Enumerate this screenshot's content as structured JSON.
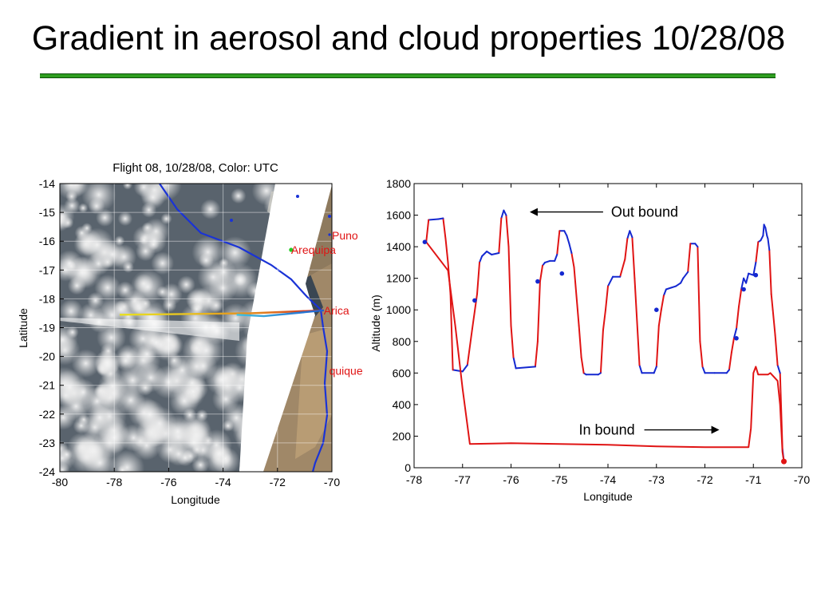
{
  "page": {
    "title": "Gradient in aerosol and cloud properties 10/28/08"
  },
  "colors": {
    "title_rule": "#2f9e20",
    "segment_outbound": "#1428d0",
    "segment_inbound": "#e01414",
    "label_red": "#e01414",
    "arequipa_marker": "#22cc22",
    "track_yellow": "#e8e020",
    "track_cyan": "#40c0e0"
  },
  "chart_data": [
    {
      "type": "map",
      "title": "Flight 08, 10/28/08, Color: UTC",
      "xlabel": "Longitude",
      "ylabel": "Latitude",
      "xlim": [
        -80,
        -70
      ],
      "ylim": [
        -24,
        -14
      ],
      "xticks": [
        "-80",
        "-78",
        "-76",
        "-74",
        "-72",
        "-70"
      ],
      "yticks": [
        "-14",
        "-15",
        "-16",
        "-17",
        "-18",
        "-19",
        "-20",
        "-21",
        "-22",
        "-23",
        "-24"
      ],
      "grid": true,
      "background": "satellite cloud imagery",
      "places": [
        {
          "name": "Puno",
          "lon": -70.0,
          "lat": -15.8,
          "color": "label_red"
        },
        {
          "name": "Arequipa",
          "lon": -71.5,
          "lat": -16.3,
          "color": "label_red",
          "marker": "arequipa_marker"
        },
        {
          "name": "Arica",
          "lon": -70.3,
          "lat": -18.4,
          "color": "label_red"
        },
        {
          "name": "Iquique",
          "lon": -70.1,
          "lat": -20.5,
          "color": "label_red",
          "shown_text": "quique"
        }
      ],
      "tracks": [
        {
          "points": [
            [
              -70.3,
              -18.4
            ],
            [
              -73.0,
              -18.5
            ],
            [
              -77.8,
              -18.55
            ]
          ],
          "colors": [
            "#d02020",
            "#e08020",
            "#e8e020"
          ]
        },
        {
          "points": [
            [
              -70.3,
              -18.4
            ],
            [
              -72.5,
              -18.6
            ],
            [
              -73.5,
              -18.55
            ]
          ],
          "colors": [
            "#2060d0",
            "#40c0e0"
          ]
        }
      ]
    },
    {
      "type": "line",
      "xlabel": "Longitude",
      "ylabel": "Altitude (m)",
      "xlim": [
        -78,
        -70
      ],
      "ylim": [
        0,
        1800
      ],
      "xticks": [
        "-78",
        "-77",
        "-76",
        "-75",
        "-74",
        "-73",
        "-72",
        "-71",
        "-70"
      ],
      "yticks": [
        "0",
        "200",
        "400",
        "600",
        "800",
        "1000",
        "1200",
        "1400",
        "1600",
        "1800"
      ],
      "grid": false,
      "annotations": [
        {
          "text": "Out bound",
          "arrow": "left",
          "x": -74.1,
          "y": 1620
        },
        {
          "text": "In bound",
          "arrow": "right",
          "x": -74.6,
          "y": 240
        }
      ],
      "series": [
        {
          "color": "mixed",
          "points": [
            [
              -70.37,
              40
            ],
            [
              -70.4,
              120
            ],
            [
              -70.45,
              600
            ],
            [
              -70.5,
              650
            ],
            [
              -70.55,
              840
            ],
            [
              -70.6,
              1000
            ],
            [
              -70.63,
              1100
            ],
            [
              -70.67,
              1380
            ],
            [
              -70.7,
              1450
            ],
            [
              -70.72,
              1470
            ],
            [
              -70.75,
              1520
            ],
            [
              -70.78,
              1540
            ],
            [
              -70.8,
              1470
            ],
            [
              -70.85,
              1440
            ],
            [
              -70.9,
              1430
            ],
            [
              -70.95,
              1300
            ],
            [
              -71.0,
              1220
            ],
            [
              -71.1,
              1230
            ],
            [
              -71.15,
              1170
            ],
            [
              -71.2,
              1200
            ],
            [
              -71.25,
              1130
            ],
            [
              -71.3,
              1020
            ],
            [
              -71.35,
              880
            ],
            [
              -71.4,
              820
            ],
            [
              -71.45,
              730
            ],
            [
              -71.5,
              620
            ],
            [
              -71.55,
              600
            ],
            [
              -71.8,
              600
            ],
            [
              -72.0,
              600
            ],
            [
              -72.05,
              640
            ],
            [
              -72.1,
              800
            ],
            [
              -72.15,
              1400
            ],
            [
              -72.2,
              1420
            ],
            [
              -72.3,
              1420
            ],
            [
              -72.35,
              1240
            ],
            [
              -72.45,
              1200
            ],
            [
              -72.5,
              1170
            ],
            [
              -72.6,
              1150
            ],
            [
              -72.7,
              1140
            ],
            [
              -72.8,
              1130
            ],
            [
              -72.85,
              1090
            ],
            [
              -72.9,
              1000
            ],
            [
              -72.95,
              900
            ],
            [
              -73.0,
              640
            ],
            [
              -73.05,
              600
            ],
            [
              -73.3,
              600
            ],
            [
              -73.35,
              650
            ],
            [
              -73.45,
              1200
            ],
            [
              -73.5,
              1460
            ],
            [
              -73.55,
              1500
            ],
            [
              -73.6,
              1450
            ],
            [
              -73.65,
              1320
            ],
            [
              -73.75,
              1210
            ],
            [
              -73.9,
              1210
            ],
            [
              -74.0,
              1150
            ],
            [
              -74.05,
              1000
            ],
            [
              -74.1,
              870
            ],
            [
              -74.15,
              600
            ],
            [
              -74.2,
              590
            ],
            [
              -74.45,
              590
            ],
            [
              -74.5,
              600
            ],
            [
              -74.55,
              700
            ],
            [
              -74.6,
              900
            ],
            [
              -74.7,
              1270
            ],
            [
              -74.75,
              1360
            ],
            [
              -74.8,
              1420
            ],
            [
              -74.85,
              1470
            ],
            [
              -74.9,
              1500
            ],
            [
              -75.0,
              1500
            ],
            [
              -75.05,
              1350
            ],
            [
              -75.1,
              1310
            ],
            [
              -75.2,
              1310
            ],
            [
              -75.3,
              1300
            ],
            [
              -75.35,
              1280
            ],
            [
              -75.4,
              1180
            ],
            [
              -75.45,
              800
            ],
            [
              -75.5,
              640
            ],
            [
              -75.9,
              630
            ],
            [
              -75.95,
              700
            ],
            [
              -76.0,
              900
            ],
            [
              -76.05,
              1400
            ],
            [
              -76.1,
              1600
            ],
            [
              -76.15,
              1630
            ],
            [
              -76.2,
              1580
            ],
            [
              -76.25,
              1360
            ],
            [
              -76.4,
              1350
            ],
            [
              -76.5,
              1370
            ],
            [
              -76.6,
              1340
            ],
            [
              -76.65,
              1300
            ],
            [
              -76.7,
              1100
            ],
            [
              -76.8,
              880
            ],
            [
              -76.9,
              650
            ],
            [
              -77.0,
              610
            ],
            [
              -77.2,
              620
            ],
            [
              -77.25,
              1100
            ],
            [
              -77.3,
              1300
            ],
            [
              -77.35,
              1450
            ],
            [
              -77.4,
              1580
            ],
            [
              -77.5,
              1575
            ],
            [
              -77.7,
              1570
            ],
            [
              -77.75,
              1430
            ]
          ]
        },
        {
          "color": "segment_inbound",
          "points": [
            [
              -77.75,
              1430
            ],
            [
              -77.3,
              1250
            ],
            [
              -77.15,
              900
            ],
            [
              -77.0,
              500
            ],
            [
              -76.9,
              270
            ],
            [
              -76.85,
              150
            ],
            [
              -76.0,
              155
            ],
            [
              -75.0,
              150
            ],
            [
              -74.0,
              145
            ],
            [
              -73.0,
              135
            ],
            [
              -72.0,
              130
            ],
            [
              -71.1,
              130
            ],
            [
              -71.05,
              250
            ],
            [
              -71.0,
              600
            ],
            [
              -70.95,
              640
            ],
            [
              -70.9,
              590
            ],
            [
              -70.7,
              590
            ],
            [
              -70.65,
              600
            ],
            [
              -70.5,
              550
            ],
            [
              -70.45,
              400
            ],
            [
              -70.4,
              100
            ],
            [
              -70.37,
              40
            ]
          ]
        }
      ]
    }
  ]
}
